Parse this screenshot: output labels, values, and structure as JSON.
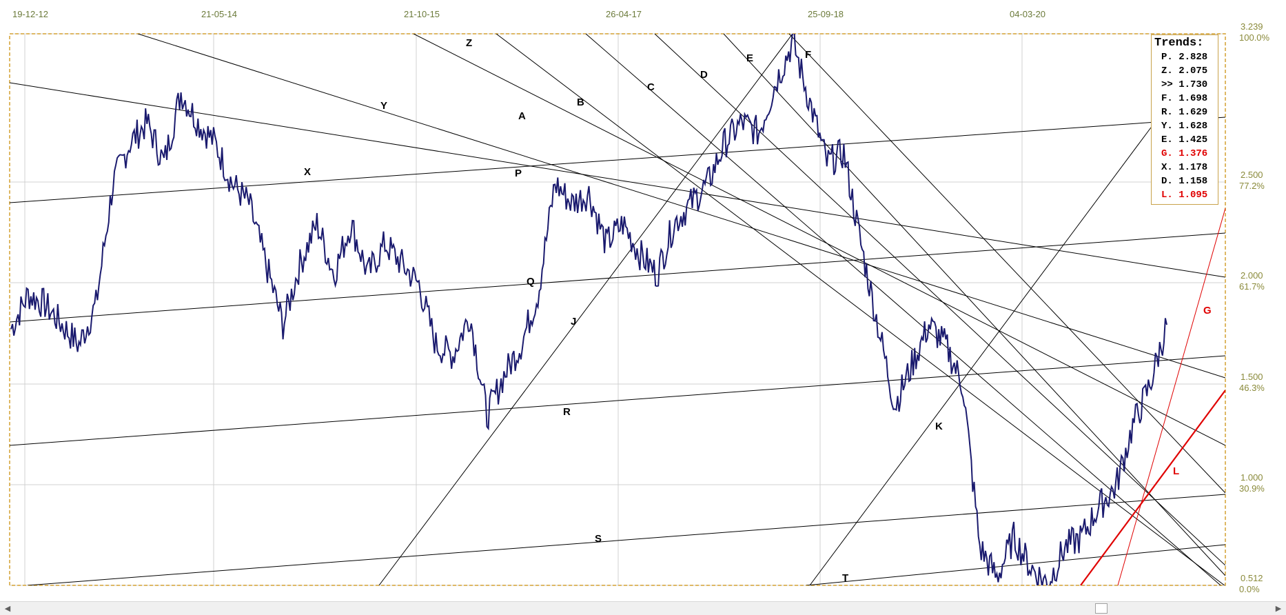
{
  "date_labels": [
    "19-12-12",
    "21-05-14",
    "21-10-15",
    "26-04-17",
    "25-09-18",
    "04-03-20"
  ],
  "price_axis": [
    {
      "price": "3.239",
      "pct": "100.0%"
    },
    {
      "price": "2.500",
      "pct": "77.2%"
    },
    {
      "price": "2.000",
      "pct": "61.7%"
    },
    {
      "price": "1.500",
      "pct": "46.3%"
    },
    {
      "price": "1.000",
      "pct": "30.9%"
    },
    {
      "price": "0.512",
      "pct": "0.0%"
    }
  ],
  "trends_panel": {
    "title": "Trends:",
    "items": [
      {
        "text": "P. 2.828",
        "color": "#000000"
      },
      {
        "text": "Z. 2.075",
        "color": "#000000"
      },
      {
        "text": ">> 1.730",
        "color": "#000000"
      },
      {
        "text": "F. 1.698",
        "color": "#000000"
      },
      {
        "text": "R. 1.629",
        "color": "#000000"
      },
      {
        "text": "Y. 1.628",
        "color": "#000000"
      },
      {
        "text": "E. 1.425",
        "color": "#000000"
      },
      {
        "text": "G. 1.376",
        "color": "#e00000"
      },
      {
        "text": "X. 1.178",
        "color": "#000000"
      },
      {
        "text": "D. 1.158",
        "color": "#000000"
      },
      {
        "text": "L. 1.095",
        "color": "#e00000"
      }
    ]
  },
  "line_labels": [
    {
      "text": "Z",
      "color": "#000000"
    },
    {
      "text": "Y",
      "color": "#000000"
    },
    {
      "text": "X",
      "color": "#000000"
    },
    {
      "text": "A",
      "color": "#000000"
    },
    {
      "text": "B",
      "color": "#000000"
    },
    {
      "text": "C",
      "color": "#000000"
    },
    {
      "text": "D",
      "color": "#000000"
    },
    {
      "text": "E",
      "color": "#000000"
    },
    {
      "text": "F",
      "color": "#000000"
    },
    {
      "text": "P",
      "color": "#000000"
    },
    {
      "text": "Q",
      "color": "#000000"
    },
    {
      "text": "J",
      "color": "#000000"
    },
    {
      "text": "R",
      "color": "#000000"
    },
    {
      "text": "K",
      "color": "#000000"
    },
    {
      "text": "S",
      "color": "#000000"
    },
    {
      "text": "T",
      "color": "#000000"
    },
    {
      "text": "G",
      "color": "#e00000"
    },
    {
      "text": "L",
      "color": "#e00000"
    }
  ],
  "colors": {
    "price_line": "#1a1a6e",
    "trend_line": "#000000",
    "highlight_trend": "#e00000",
    "frame": "#d4a030",
    "grid": "#d0d0d0",
    "axis_text": "#8a8a3a"
  },
  "chart_data": {
    "type": "line",
    "title": "",
    "xlabel": "",
    "ylabel": "",
    "x_ticks": [
      "19-12-12",
      "21-05-14",
      "21-10-15",
      "26-04-17",
      "25-09-18",
      "04-03-20"
    ],
    "ylim": [
      0.512,
      3.239
    ],
    "y_ticks": [
      0.512,
      1.0,
      1.5,
      2.0,
      2.5,
      3.239
    ],
    "grid": true,
    "series": [
      {
        "values": [
          1.78,
          1.95,
          1.9,
          1.8,
          1.7,
          1.9,
          2.5,
          2.7,
          2.8,
          2.6,
          2.95,
          2.8,
          2.7,
          2.5,
          2.4,
          2.1,
          1.8,
          2.1,
          2.3,
          2.05,
          2.3,
          2.05,
          2.2,
          2.1,
          2.0,
          1.7,
          1.65,
          1.85,
          1.35,
          1.55,
          1.7,
          1.95,
          2.5,
          2.4,
          2.45,
          2.2,
          2.3,
          2.15,
          2.05,
          2.3,
          2.4,
          2.5,
          2.7,
          2.8,
          2.75,
          3.0,
          3.2,
          2.9,
          2.6,
          2.65,
          2.2,
          1.8,
          1.4,
          1.6,
          1.8,
          1.7,
          1.5,
          0.7,
          0.55,
          0.75,
          0.6,
          0.52,
          0.7,
          0.75,
          0.9,
          1.0,
          1.3,
          1.5,
          1.8
        ]
      }
    ]
  }
}
